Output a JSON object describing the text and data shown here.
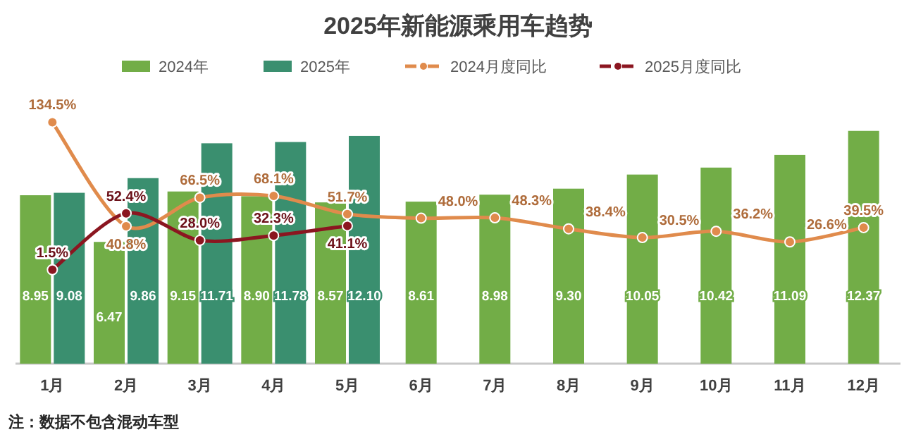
{
  "chart_data": {
    "type": "bar",
    "title": "2025年新能源乘用车趋势",
    "categories": [
      "1月",
      "2月",
      "3月",
      "4月",
      "5月",
      "6月",
      "7月",
      "8月",
      "9月",
      "10月",
      "11月",
      "12月"
    ],
    "series": [
      {
        "name": "2024年",
        "color": "#72ad47",
        "values": [
          8.95,
          6.47,
          9.15,
          8.9,
          8.57,
          8.61,
          8.98,
          9.3,
          10.05,
          10.42,
          11.09,
          12.37
        ],
        "value_labels": [
          "8.95",
          "6.47",
          "9.15",
          "8.90",
          "8.57",
          "8.61",
          "8.98",
          "9.30",
          "10.05",
          "10.42",
          "11.09",
          "12.37"
        ]
      },
      {
        "name": "2025年",
        "color": "#3a8f6f",
        "values": [
          9.08,
          9.86,
          11.71,
          11.78,
          12.1,
          null,
          null,
          null,
          null,
          null,
          null,
          null
        ],
        "value_labels": [
          "9.08",
          "9.86",
          "11.71",
          "11.78",
          "12.10",
          null,
          null,
          null,
          null,
          null,
          null,
          null
        ]
      },
      {
        "name": "2024月度同比",
        "type": "line",
        "axis": "y2",
        "color": "#e08b4c",
        "values": [
          134.5,
          40.8,
          66.5,
          68.1,
          51.7,
          48.0,
          48.3,
          38.4,
          30.5,
          36.2,
          26.6,
          39.5
        ],
        "value_labels": [
          "134.5%",
          "40.8%",
          "66.5%",
          "68.1%",
          "51.7%",
          "48.0%",
          "48.3%",
          "38.4%",
          "30.5%",
          "36.2%",
          "26.6%",
          "39.5%"
        ]
      },
      {
        "name": "2025月度同比",
        "type": "line",
        "axis": "y2",
        "color": "#8b1620",
        "values": [
          1.5,
          52.4,
          28.0,
          32.3,
          41.1,
          null,
          null,
          null,
          null,
          null,
          null,
          null
        ],
        "value_labels": [
          "1.5%",
          "52.4%",
          "28.0%",
          "32.3%",
          "41.1%",
          null,
          null,
          null,
          null,
          null,
          null,
          null
        ]
      }
    ],
    "tick_labels": "x",
    "legend": "top",
    "marker": "circle",
    "annotations": [
      "注：数据不包含混动车型"
    ]
  }
}
